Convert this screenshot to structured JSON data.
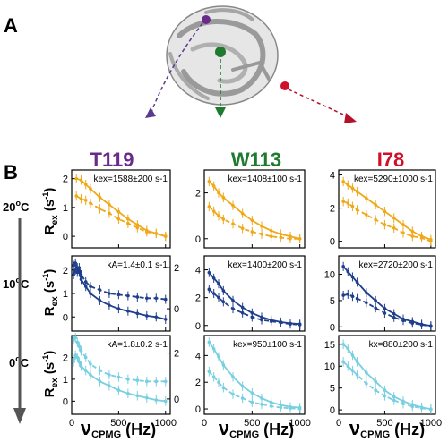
{
  "panel_labels": {
    "a": "A",
    "b": "B"
  },
  "residues": [
    {
      "name": "T119",
      "color": "#6a2a8c"
    },
    {
      "name": "W113",
      "color": "#1e7a2e"
    },
    {
      "name": "I78",
      "color": "#d0102a"
    }
  ],
  "rows": [
    {
      "label": "20",
      "sup": "o",
      "unit": "C"
    },
    {
      "label": "10",
      "sup": "o",
      "unit": "C"
    },
    {
      "label": "0",
      "sup": "o",
      "unit": "C"
    }
  ],
  "ylabel": {
    "main": "R",
    "sub": "ex",
    "rest": " (s",
    "sup": "-1",
    "end": ")"
  },
  "xlabel": {
    "main": "ν",
    "sub": "CPMG",
    "rest": " (Hz)"
  },
  "colors": {
    "row20": "#f0a818",
    "row10": "#1f3e8c",
    "row0": "#78cfe0",
    "arrow": "#555555"
  },
  "chart_data": [
    {
      "type": "line",
      "residue": "T119",
      "temperature": "20°C",
      "annotation": "kex=1588±200 s-1",
      "color": "#f0a818",
      "xlim": [
        0,
        1050
      ],
      "ylim": [
        -0.4,
        2.3
      ],
      "yticks": [
        0,
        1,
        2
      ],
      "xticks": [
        0,
        500,
        1000
      ],
      "series": [
        {
          "style": "solid",
          "x": [
            50,
            100,
            150,
            200,
            300,
            400,
            500,
            600,
            700,
            800,
            900,
            1000
          ],
          "y": [
            2.0,
            1.95,
            1.8,
            1.65,
            1.35,
            1.1,
            0.85,
            0.6,
            0.4,
            0.2,
            0.1,
            0.0
          ]
        },
        {
          "style": "dashed",
          "x": [
            50,
            100,
            150,
            200,
            300,
            400,
            500,
            600,
            700,
            800,
            900,
            1000
          ],
          "y": [
            1.4,
            1.3,
            1.25,
            1.15,
            0.95,
            0.8,
            0.6,
            0.45,
            0.3,
            0.15,
            0.1,
            0.0
          ]
        }
      ]
    },
    {
      "type": "line",
      "residue": "W113",
      "temperature": "20°C",
      "annotation": "kex=1408±100 s-1",
      "color": "#f0a818",
      "xlim": [
        0,
        1050
      ],
      "ylim": [
        -0.4,
        3.0
      ],
      "yticks": [
        0,
        2
      ],
      "xticks": [
        0,
        500,
        1000
      ],
      "series": [
        {
          "style": "solid",
          "x": [
            50,
            100,
            150,
            200,
            300,
            400,
            500,
            600,
            700,
            800,
            900,
            1000
          ],
          "y": [
            2.5,
            2.3,
            2.0,
            1.8,
            1.45,
            1.1,
            0.8,
            0.55,
            0.35,
            0.2,
            0.1,
            0.0
          ]
        },
        {
          "style": "dashed",
          "x": [
            50,
            100,
            150,
            200,
            300,
            400,
            500,
            600,
            700,
            800,
            900,
            1000
          ],
          "y": [
            1.4,
            1.2,
            1.0,
            0.85,
            0.65,
            0.45,
            0.3,
            0.2,
            0.1,
            0.05,
            0.0,
            0.0
          ]
        }
      ]
    },
    {
      "type": "line",
      "residue": "I78",
      "temperature": "20°C",
      "annotation": "kex=5290±1000 s-1",
      "color": "#f0a818",
      "xlim": [
        0,
        1050
      ],
      "ylim": [
        -0.4,
        4.3
      ],
      "yticks": [
        0,
        2,
        4
      ],
      "xticks": [
        0,
        500,
        1000
      ],
      "series": [
        {
          "style": "solid",
          "x": [
            50,
            100,
            150,
            200,
            300,
            400,
            500,
            600,
            700,
            800,
            900,
            1000
          ],
          "y": [
            3.6,
            3.4,
            3.2,
            3.0,
            2.6,
            2.2,
            1.8,
            1.4,
            1.0,
            0.6,
            0.3,
            0.1
          ]
        },
        {
          "style": "dashed",
          "x": [
            50,
            100,
            150,
            200,
            300,
            400,
            500,
            600,
            700,
            800,
            900,
            1000
          ],
          "y": [
            2.4,
            2.3,
            2.1,
            1.9,
            1.6,
            1.3,
            1.0,
            0.8,
            0.5,
            0.3,
            0.2,
            0.0
          ]
        }
      ]
    },
    {
      "type": "line",
      "residue": "T119",
      "temperature": "10°C",
      "annotation": "kA=1.4±0.1 s-1",
      "color": "#1f3e8c",
      "xlim": [
        0,
        1050
      ],
      "ylim": [
        -0.6,
        2.6
      ],
      "yticks": [
        0,
        1,
        2
      ],
      "xticks": [
        0,
        500,
        1000
      ],
      "right_axis": {
        "yticks": [
          0,
          2
        ],
        "label_positions": [
          0.35,
          2.1
        ]
      },
      "series": [
        {
          "style": "solid",
          "x": [
            20,
            40,
            60,
            80,
            100,
            150,
            200,
            300,
            400,
            500,
            600,
            700,
            800,
            900,
            1000
          ],
          "y": [
            2.2,
            2.3,
            2.1,
            1.9,
            1.6,
            1.3,
            1.0,
            0.7,
            0.5,
            0.35,
            0.25,
            0.15,
            0.05,
            0.0,
            -0.1
          ]
        },
        {
          "style": "dashed",
          "x": [
            20,
            40,
            60,
            80,
            100,
            150,
            200,
            300,
            400,
            500,
            600,
            700,
            800,
            900,
            1000
          ],
          "y": [
            1.8,
            2.0,
            1.9,
            2.1,
            1.8,
            1.5,
            1.3,
            1.15,
            1.0,
            0.95,
            0.9,
            0.85,
            0.8,
            0.8,
            0.75
          ]
        }
      ]
    },
    {
      "type": "line",
      "residue": "W113",
      "temperature": "10°C",
      "annotation": "kex=1400±200 s-1",
      "color": "#1f3e8c",
      "xlim": [
        0,
        1050
      ],
      "ylim": [
        -0.4,
        5.0
      ],
      "yticks": [
        0,
        2,
        4
      ],
      "xticks": [
        0,
        500,
        1000
      ],
      "series": [
        {
          "style": "solid",
          "x": [
            50,
            100,
            150,
            200,
            300,
            400,
            500,
            600,
            700,
            800,
            900,
            1000
          ],
          "y": [
            3.8,
            3.4,
            3.0,
            2.5,
            1.8,
            1.3,
            0.9,
            0.6,
            0.4,
            0.25,
            0.15,
            0.1
          ]
        },
        {
          "style": "dashed",
          "x": [
            50,
            100,
            150,
            200,
            300,
            400,
            500,
            600,
            700,
            800,
            900,
            1000
          ],
          "y": [
            2.6,
            2.3,
            2.0,
            1.7,
            1.2,
            0.9,
            0.6,
            0.4,
            0.3,
            0.2,
            0.1,
            0.05
          ]
        }
      ]
    },
    {
      "type": "line",
      "residue": "I78",
      "temperature": "10°C",
      "annotation": "kex=2720±200 s-1",
      "color": "#1f3e8c",
      "xlim": [
        0,
        1050
      ],
      "ylim": [
        -0.8,
        13.5
      ],
      "yticks": [
        0,
        5,
        10
      ],
      "xticks": [
        0,
        500,
        1000
      ],
      "series": [
        {
          "style": "solid",
          "x": [
            50,
            100,
            150,
            200,
            300,
            400,
            500,
            600,
            700,
            800,
            900,
            1000
          ],
          "y": [
            11.5,
            10.5,
            9.5,
            8.5,
            6.5,
            5.0,
            3.5,
            2.5,
            1.5,
            1.0,
            0.5,
            0.2
          ]
        },
        {
          "style": "dashed",
          "x": [
            50,
            100,
            150,
            200,
            300,
            400,
            500,
            600,
            700,
            800,
            900,
            1000
          ],
          "y": [
            6.0,
            6.2,
            5.8,
            5.4,
            4.6,
            3.6,
            2.6,
            1.8,
            1.2,
            0.7,
            0.4,
            0.1
          ]
        }
      ]
    },
    {
      "type": "line",
      "residue": "T119",
      "temperature": "0°C",
      "annotation": "kA=1.8±0.2 s-1",
      "color": "#78cfe0",
      "xlim": [
        0,
        1050
      ],
      "ylim": [
        -0.6,
        3.0
      ],
      "yticks": [
        0,
        1,
        2
      ],
      "xticks": [
        0,
        500,
        1000
      ],
      "right_axis": {
        "yticks": [
          0,
          2
        ],
        "label_positions": [
          0.1,
          2.2
        ]
      },
      "series": [
        {
          "style": "solid",
          "x": [
            20,
            40,
            60,
            80,
            100,
            150,
            200,
            300,
            400,
            500,
            600,
            700,
            800,
            900,
            1000
          ],
          "y": [
            1.8,
            2.1,
            2.0,
            1.8,
            1.6,
            1.4,
            1.2,
            0.9,
            0.7,
            0.5,
            0.35,
            0.25,
            0.15,
            0.05,
            0.0
          ]
        },
        {
          "style": "dashed",
          "x": [
            20,
            40,
            60,
            80,
            100,
            150,
            200,
            300,
            400,
            500,
            600,
            700,
            800,
            900,
            1000
          ],
          "y": [
            2.8,
            2.9,
            2.7,
            2.5,
            2.3,
            2.0,
            1.7,
            1.4,
            1.2,
            1.1,
            1.0,
            0.95,
            0.9,
            0.9,
            0.9
          ]
        }
      ]
    },
    {
      "type": "line",
      "residue": "W113",
      "temperature": "0°C",
      "annotation": "kex=950±100 s-1",
      "color": "#78cfe0",
      "xlim": [
        0,
        1050
      ],
      "ylim": [
        -0.4,
        5.5
      ],
      "yticks": [
        0,
        2,
        4
      ],
      "xticks": [
        0,
        500,
        1000
      ],
      "series": [
        {
          "style": "solid",
          "x": [
            50,
            100,
            150,
            200,
            300,
            400,
            500,
            600,
            700,
            800,
            900,
            1000
          ],
          "y": [
            5.0,
            4.5,
            3.9,
            3.3,
            2.4,
            1.7,
            1.2,
            0.8,
            0.5,
            0.3,
            0.15,
            0.1
          ]
        },
        {
          "style": "dashed",
          "x": [
            50,
            100,
            150,
            200,
            300,
            400,
            500,
            600,
            700,
            800,
            900,
            1000
          ],
          "y": [
            2.8,
            2.4,
            2.0,
            1.6,
            1.1,
            0.8,
            0.5,
            0.35,
            0.2,
            0.1,
            0.05,
            0.0
          ]
        }
      ]
    },
    {
      "type": "line",
      "residue": "I78",
      "temperature": "0°C",
      "annotation": "kx=880±200 s-1",
      "color": "#78cfe0",
      "xlim": [
        0,
        1050
      ],
      "ylim": [
        -1.0,
        17.0
      ],
      "yticks": [
        0,
        5,
        10,
        15
      ],
      "xticks": [
        0,
        500,
        1000
      ],
      "series": [
        {
          "style": "solid",
          "x": [
            50,
            100,
            150,
            200,
            300,
            400,
            500,
            600,
            700,
            800,
            900,
            1000
          ],
          "y": [
            15.0,
            14.0,
            12.5,
            11.0,
            8.5,
            6.5,
            4.5,
            3.0,
            2.0,
            1.2,
            0.6,
            0.2
          ]
        },
        {
          "style": "dashed",
          "x": [
            50,
            100,
            150,
            200,
            300,
            400,
            500,
            600,
            700,
            800,
            900,
            1000
          ],
          "y": [
            11.0,
            10.0,
            9.0,
            8.0,
            6.0,
            4.5,
            3.2,
            2.2,
            1.4,
            0.8,
            0.4,
            0.1
          ]
        }
      ]
    }
  ]
}
